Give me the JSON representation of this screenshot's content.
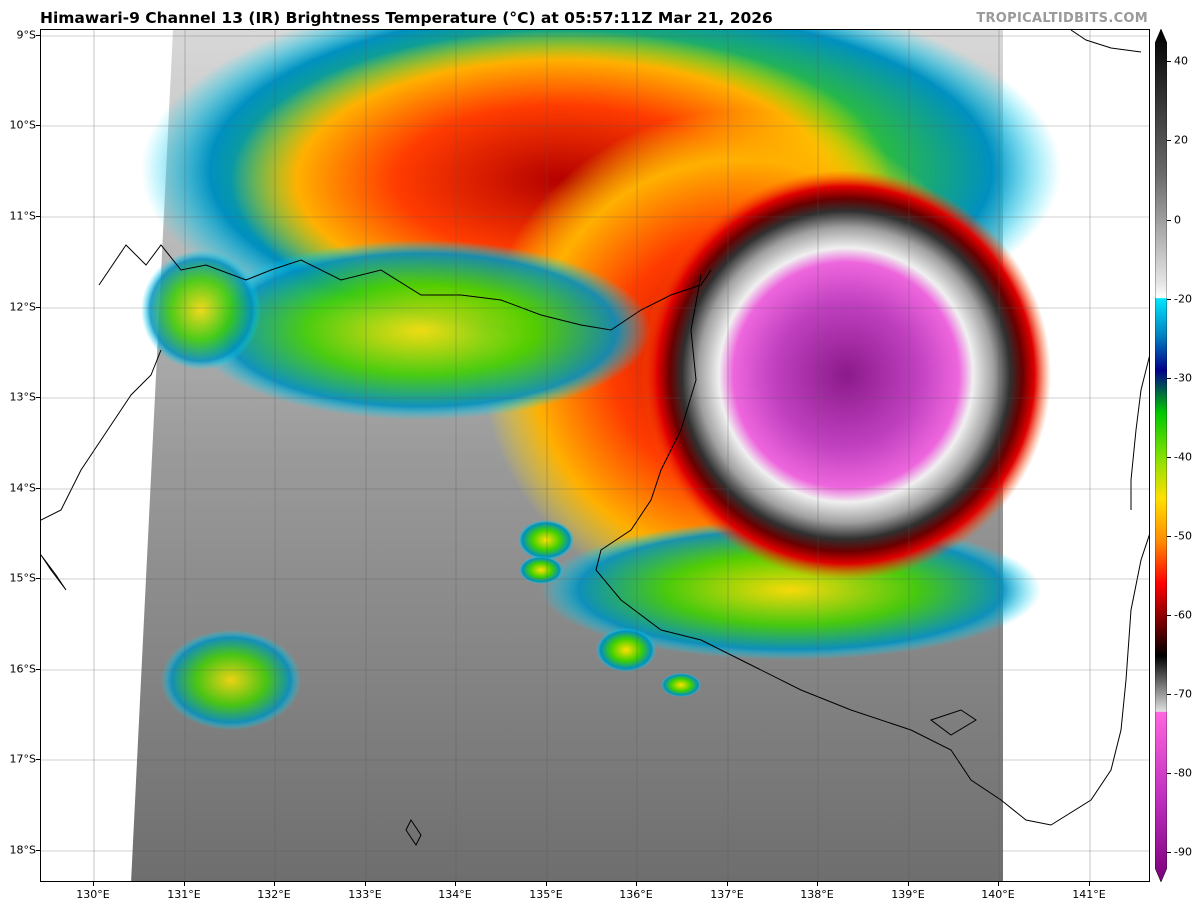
{
  "header": {
    "title": "Himawari-9 Channel 13 (IR) Brightness Temperature (°C) at 05:57:11Z Mar 21, 2026",
    "credit": "TROPICALTIDBITS.COM"
  },
  "map": {
    "product": "Himawari-9 Channel 13 (IR) Brightness Temperature",
    "lat_labels": [
      "9°S",
      "10°S",
      "11°S",
      "12°S",
      "13°S",
      "14°S",
      "15°S",
      "16°S",
      "17°S",
      "18°S"
    ],
    "lon_labels": [
      "130°E",
      "131°E",
      "132°E",
      "133°E",
      "134°E",
      "135°E",
      "136°E",
      "137°E",
      "138°E",
      "139°E",
      "140°E",
      "141°E"
    ],
    "lat_values": [
      -9,
      -10,
      -11,
      -12,
      -13,
      -14,
      -15,
      -16,
      -17,
      -18
    ],
    "lon_values": [
      130,
      131,
      132,
      133,
      134,
      135,
      136,
      137,
      138,
      139,
      140,
      141
    ],
    "lat_range": [
      -18.35,
      -8.95
    ],
    "lon_range": [
      129.4,
      141.65
    ],
    "grid": true
  },
  "colorbar": {
    "unit": "°C",
    "range": [
      -95,
      45
    ],
    "tick_labels": [
      "40",
      "20",
      "0",
      "-20",
      "-30",
      "-40",
      "-50",
      "-60",
      "-70",
      "-80",
      "-90"
    ],
    "tick_values": [
      40,
      20,
      0,
      -20,
      -30,
      -40,
      -50,
      -60,
      -70,
      -80,
      -90
    ],
    "colors": {
      "warm_gray_top": "#000000",
      "mid_gray": "#808080",
      "light": "#ffffff",
      "cyan": "#00e5ff",
      "blue": "#00008b",
      "green": "#00c800",
      "yellow": "#ffff00",
      "orange": "#ff8c00",
      "red": "#ff0000",
      "dark_red": "#5a0000",
      "magenta": "#ff5cd6",
      "purple": "#8b008b"
    }
  }
}
